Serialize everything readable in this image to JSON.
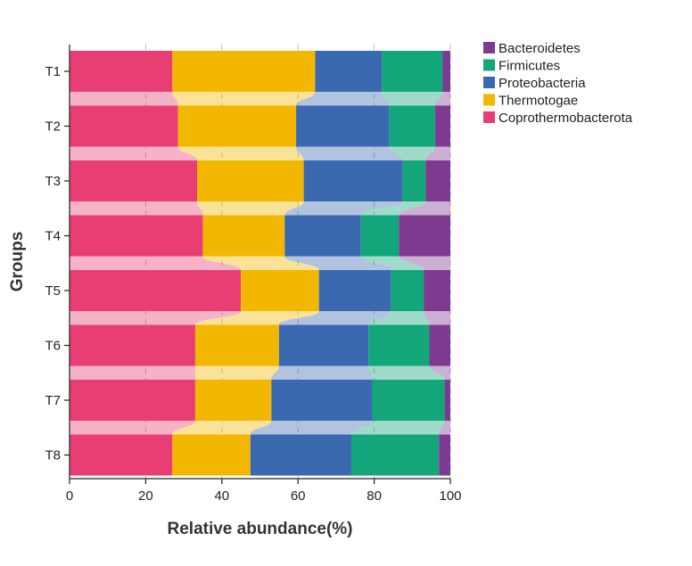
{
  "chart_data": {
    "type": "bar",
    "orientation": "horizontal",
    "stacked": true,
    "xlabel": "Relative abundance(%)",
    "ylabel": "Groups",
    "xlim": [
      0,
      100
    ],
    "x_ticks": [
      0,
      20,
      40,
      60,
      80,
      100
    ],
    "categories": [
      "T1",
      "T2",
      "T3",
      "T4",
      "T5",
      "T6",
      "T7",
      "T8"
    ],
    "grid": true,
    "legend_position": "top-right",
    "series": [
      {
        "name": "Coprothermobacterota",
        "color": "#E83E73",
        "values": [
          27,
          28.5,
          33.5,
          35,
          45,
          33,
          33,
          27
        ]
      },
      {
        "name": "Thermotogae",
        "color": "#F2B700",
        "values": [
          37.5,
          31,
          28,
          21.5,
          20.5,
          22,
          20,
          20.5
        ]
      },
      {
        "name": "Proteobacteria",
        "color": "#3B69B0",
        "values": [
          17.5,
          24.5,
          26,
          20,
          19,
          23.5,
          26.5,
          26.5
        ]
      },
      {
        "name": "Firmicutes",
        "color": "#12A67A",
        "values": [
          16,
          12,
          6,
          10,
          8.5,
          16,
          19,
          23
        ]
      },
      {
        "name": "Bacteroidetes",
        "color": "#7E3A90",
        "values": [
          2,
          4,
          6.5,
          13.5,
          7,
          5.5,
          1.5,
          3
        ]
      }
    ],
    "legend_order": [
      "Bacteroidetes",
      "Firmicutes",
      "Proteobacteria",
      "Thermotogae",
      "Coprothermobacterota"
    ]
  }
}
